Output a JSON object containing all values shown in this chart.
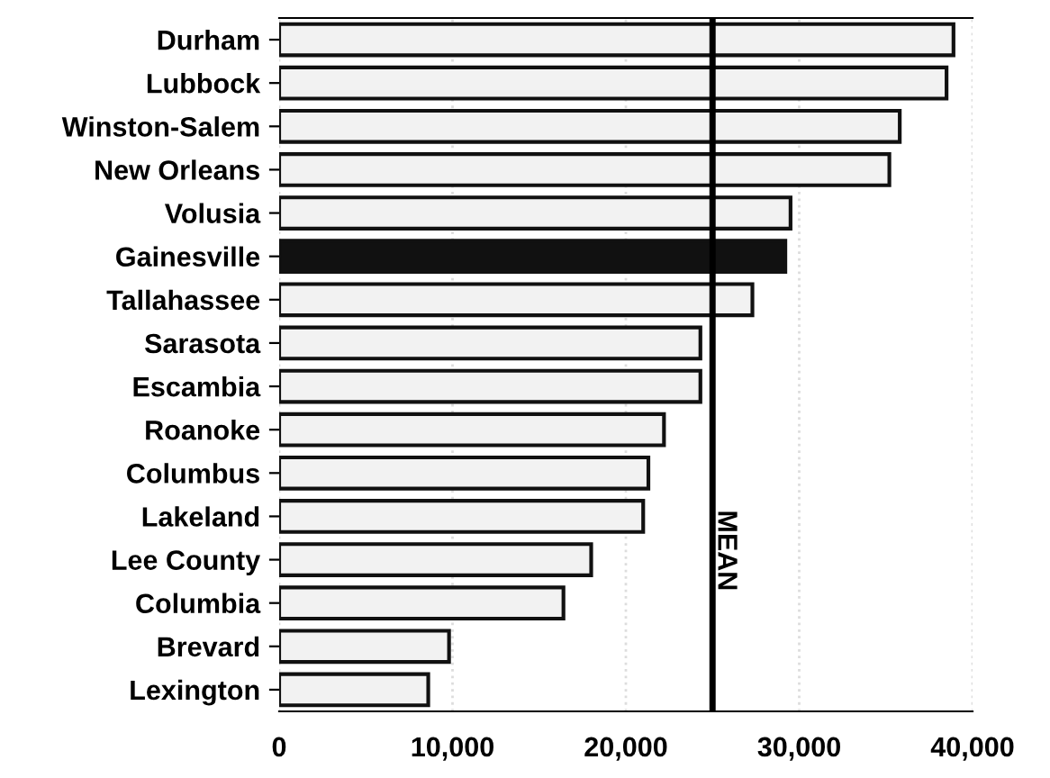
{
  "chart_data": {
    "type": "bar",
    "orientation": "horizontal",
    "categories": [
      "Durham",
      "Lubbock",
      "Winston-Salem",
      "New Orleans",
      "Volusia",
      "Gainesville",
      "Tallahassee",
      "Sarasota",
      "Escambia",
      "Roanoke",
      "Columbus",
      "Lakeland",
      "Lee County",
      "Columbia",
      "Brevard",
      "Lexington"
    ],
    "values": [
      38900,
      38500,
      35800,
      35200,
      29500,
      29200,
      27300,
      24300,
      24300,
      22200,
      21300,
      21000,
      18000,
      16400,
      9800,
      8600
    ],
    "colors": [
      "#f2f2f2",
      "#f2f2f2",
      "#f2f2f2",
      "#f2f2f2",
      "#f2f2f2",
      "#111111",
      "#f2f2f2",
      "#f2f2f2",
      "#f2f2f2",
      "#f2f2f2",
      "#f2f2f2",
      "#f2f2f2",
      "#f2f2f2",
      "#f2f2f2",
      "#f2f2f2",
      "#f2f2f2"
    ],
    "xlim": [
      0,
      40000
    ],
    "xticks": [
      0,
      {
        "value": 10000,
        "label": "10,000"
      },
      {
        "value": 20000,
        "label": "20,000"
      },
      {
        "value": 30000,
        "label": "30,000"
      },
      {
        "value": 40000,
        "label": "40,000"
      }
    ],
    "grid": "x",
    "ref_lines": [
      {
        "axis": "x",
        "value": 25000,
        "label": "MEAN",
        "color": "#000000"
      }
    ]
  }
}
